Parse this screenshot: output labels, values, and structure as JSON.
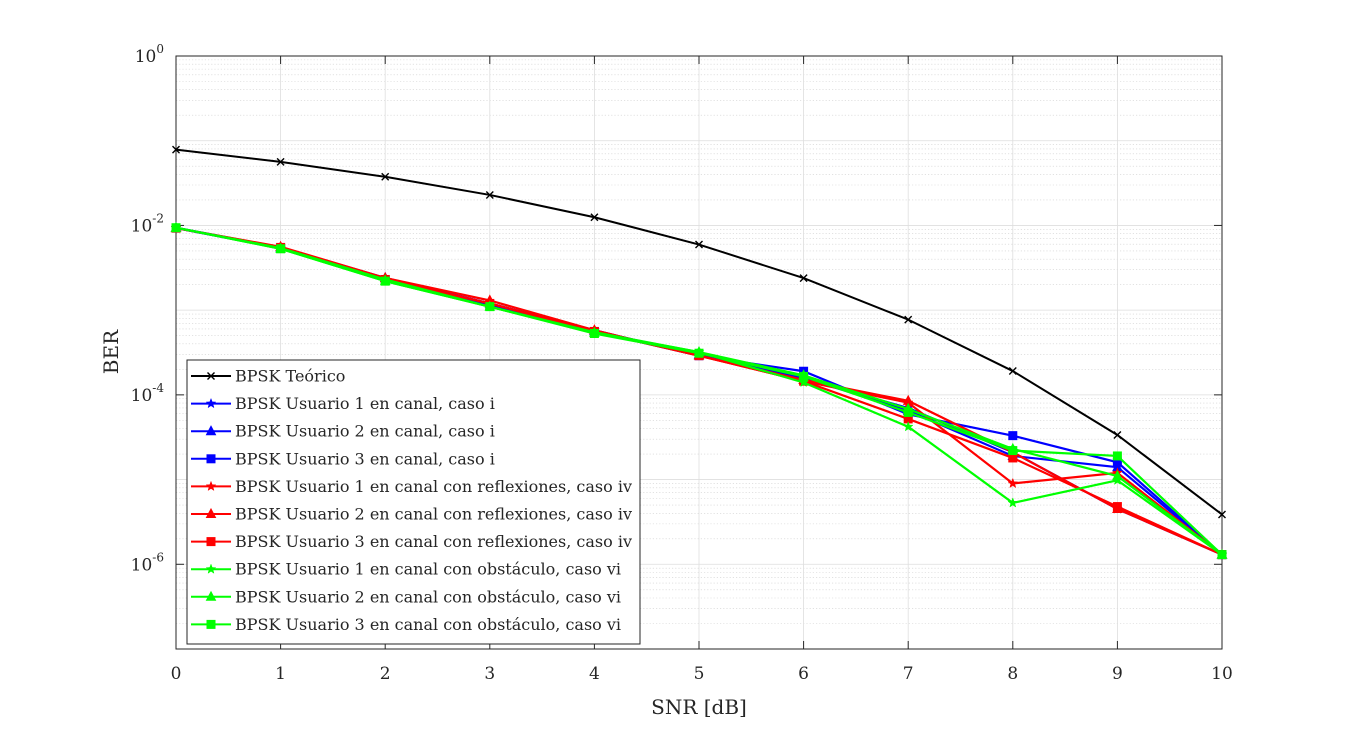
{
  "chart_data": {
    "type": "line",
    "title": "",
    "xlabel": "SNR [dB]",
    "ylabel": "BER",
    "x": [
      0,
      1,
      2,
      3,
      4,
      5,
      6,
      7,
      8,
      9,
      10
    ],
    "xlim": [
      0,
      10
    ],
    "ylim": [
      1e-07,
      1
    ],
    "yscale": "log",
    "grid": true,
    "minor_grid": true,
    "legend_position": "bottom-left",
    "x_ticks": [
      "0",
      "1",
      "2",
      "3",
      "4",
      "5",
      "6",
      "7",
      "8",
      "9",
      "10"
    ],
    "y_ticks": [
      {
        "value": 1,
        "base": "10",
        "exp": "0"
      },
      {
        "value": 0.01,
        "base": "10",
        "exp": "-2"
      },
      {
        "value": 0.0001,
        "base": "10",
        "exp": "-4"
      },
      {
        "value": 1e-06,
        "base": "10",
        "exp": "-6"
      }
    ],
    "series": [
      {
        "name": "BPSK Teórico",
        "color": "#000000",
        "marker": "x",
        "values": [
          0.0786,
          0.0563,
          0.0375,
          0.0229,
          0.0125,
          0.00595,
          0.00239,
          0.000773,
          0.000191,
          3.36e-05,
          3.87e-06
        ]
      },
      {
        "name": "BPSK Usuario 1 en canal, caso i",
        "color": "#0000ff",
        "marker": "star",
        "values": [
          0.0093,
          0.0054,
          0.0023,
          0.0012,
          0.00058,
          0.00029,
          0.000155,
          7e-05,
          2.1e-05,
          4.5e-06,
          1.3e-06
        ]
      },
      {
        "name": "BPSK Usuario 2 en canal, caso i",
        "color": "#0000ff",
        "marker": "triangle",
        "values": [
          0.0094,
          0.0055,
          0.0024,
          0.0012,
          0.00057,
          0.0003,
          0.00016,
          6.5e-05,
          1.9e-05,
          1.4e-05,
          1.3e-06
        ]
      },
      {
        "name": "BPSK Usuario 3 en canal, caso i",
        "color": "#0000ff",
        "marker": "square",
        "values": [
          0.0093,
          0.0054,
          0.0023,
          0.00115,
          0.00056,
          0.00029,
          0.00019,
          5.9e-05,
          3.3e-05,
          1.6e-05,
          1.3e-06
        ]
      },
      {
        "name": "BPSK Usuario 1 en canal con reflexiones, caso iv",
        "color": "#ff0000",
        "marker": "star",
        "values": [
          0.0093,
          0.0055,
          0.0023,
          0.0012,
          0.00057,
          0.00029,
          0.000145,
          8.1e-05,
          9e-06,
          1.2e-05,
          1.3e-06
        ]
      },
      {
        "name": "BPSK Usuario 2 en canal con reflexiones, caso iv",
        "color": "#ff0000",
        "marker": "triangle",
        "values": [
          0.0093,
          0.0056,
          0.0024,
          0.0013,
          0.00058,
          0.00029,
          0.00015,
          8.5e-05,
          2.1e-05,
          4.5e-06,
          1.3e-06
        ]
      },
      {
        "name": "BPSK Usuario 3 en canal con reflexiones, caso iv",
        "color": "#ff0000",
        "marker": "square",
        "values": [
          0.0093,
          0.0055,
          0.0023,
          0.0012,
          0.00056,
          0.00029,
          0.000145,
          5.2e-05,
          1.8e-05,
          4.8e-06,
          1.3e-06
        ]
      },
      {
        "name": "BPSK Usuario 1 en canal con obstáculo, caso vi",
        "color": "#00ff00",
        "marker": "star",
        "values": [
          0.0094,
          0.0054,
          0.0023,
          0.0011,
          0.00055,
          0.00032,
          0.00014,
          4.2e-05,
          5.3e-06,
          9.8e-06,
          1.3e-06
        ]
      },
      {
        "name": "BPSK Usuario 2 en canal con obstáculo, caso vi",
        "color": "#00ff00",
        "marker": "triangle",
        "values": [
          0.0094,
          0.0053,
          0.0022,
          0.0011,
          0.00054,
          0.00032,
          0.00017,
          6.8e-05,
          2.3e-05,
          1.1e-05,
          1.3e-06
        ]
      },
      {
        "name": "BPSK Usuario 3 en canal con obstáculo, caso vi",
        "color": "#00ff00",
        "marker": "square",
        "values": [
          0.0094,
          0.0053,
          0.0022,
          0.0011,
          0.00053,
          0.00031,
          0.000165,
          6.2e-05,
          2.2e-05,
          1.9e-05,
          1.3e-06
        ]
      }
    ]
  }
}
